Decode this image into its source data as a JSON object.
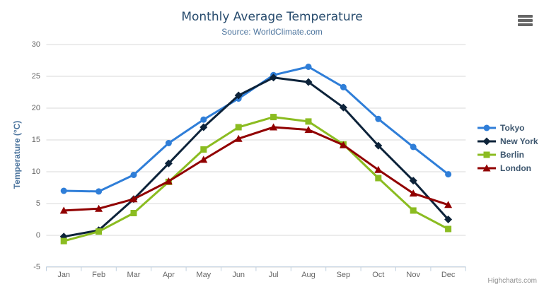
{
  "chart_data": {
    "type": "line",
    "title": "Monthly Average Temperature",
    "subtitle": "Source: WorldClimate.com",
    "xlabel": "",
    "ylabel": "Temperature (°C)",
    "categories": [
      "Jan",
      "Feb",
      "Mar",
      "Apr",
      "May",
      "Jun",
      "Jul",
      "Aug",
      "Sep",
      "Oct",
      "Nov",
      "Dec"
    ],
    "y_ticks": [
      30,
      25,
      20,
      15,
      10,
      5,
      0,
      -5
    ],
    "ylim": [
      -5,
      30
    ],
    "grid": "horizontal",
    "legend_position": "right",
    "axis_line_color": "#c0d0e0",
    "grid_line_color": "#d8d8d8",
    "series": [
      {
        "name": "Tokyo",
        "color": "#2f7ed8",
        "marker": "circle",
        "values": [
          7.0,
          6.9,
          9.5,
          14.5,
          18.2,
          21.5,
          25.2,
          26.5,
          23.3,
          18.3,
          13.9,
          9.6
        ]
      },
      {
        "name": "New York",
        "color": "#0d233a",
        "marker": "diamond",
        "values": [
          -0.2,
          0.8,
          5.7,
          11.3,
          17.0,
          22.0,
          24.8,
          24.1,
          20.1,
          14.1,
          8.6,
          2.5
        ]
      },
      {
        "name": "Berlin",
        "color": "#8bbc21",
        "marker": "square",
        "values": [
          -0.9,
          0.6,
          3.5,
          8.4,
          13.5,
          17.0,
          18.6,
          17.9,
          14.3,
          9.0,
          3.9,
          1.0
        ]
      },
      {
        "name": "London",
        "color": "#910000",
        "marker": "triangle",
        "values": [
          3.9,
          4.2,
          5.7,
          8.5,
          11.9,
          15.2,
          17.0,
          16.6,
          14.2,
          10.3,
          6.6,
          4.8
        ]
      }
    ]
  },
  "menu": {
    "tooltip": "Chart context menu"
  },
  "credits": {
    "label": "Highcharts.com"
  }
}
